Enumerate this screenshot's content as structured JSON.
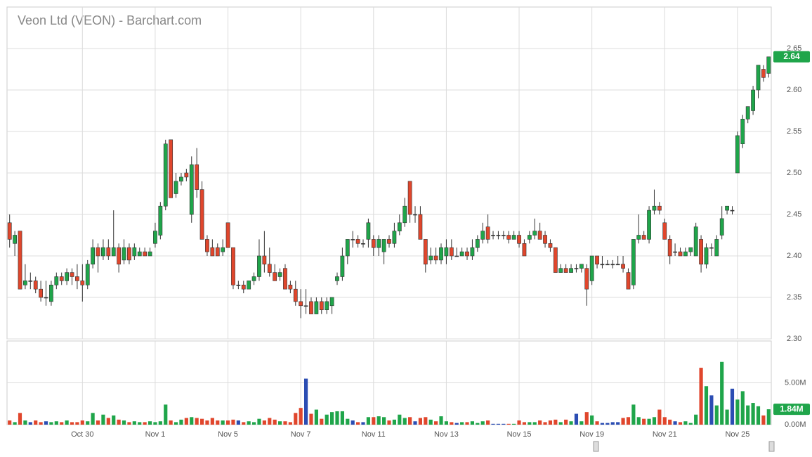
{
  "chart_data": {
    "type": "candlestick",
    "title": "Veon Ltd (VEON) - Barchart.com",
    "categories": [
      null,
      null,
      null,
      null,
      null,
      null,
      null,
      null,
      null,
      null,
      null,
      null,
      null,
      null,
      "Oct 30",
      null,
      null,
      null,
      null,
      null,
      null,
      null,
      null,
      null,
      null,
      null,
      null,
      null,
      "Nov 1",
      null,
      null,
      null,
      null,
      null,
      null,
      null,
      null,
      null,
      null,
      null,
      null,
      null,
      "Nov 5",
      null,
      null,
      null,
      null,
      null,
      null,
      null,
      null,
      null,
      null,
      null,
      null,
      null,
      "Nov 7",
      null,
      null,
      null,
      null,
      null,
      null,
      null,
      null,
      null,
      null,
      null,
      null,
      null,
      "Nov 11",
      null,
      null,
      null,
      null,
      null,
      null,
      null,
      null,
      null,
      null,
      null,
      null,
      null,
      "Nov 13",
      null,
      null,
      null,
      null,
      null,
      null,
      null,
      null,
      null,
      null,
      null,
      null,
      null,
      "Nov 15",
      null,
      null,
      null,
      null,
      null,
      null,
      null,
      null,
      null,
      null,
      null,
      null,
      null,
      "Nov 19",
      null,
      null,
      null,
      null,
      null,
      null,
      null,
      null,
      null,
      null,
      null,
      null,
      null,
      "Nov 21",
      null,
      null,
      null,
      null,
      null,
      null,
      null,
      null,
      null,
      null,
      null,
      null,
      null,
      "Nov 25",
      null,
      null,
      null,
      null,
      null,
      null
    ],
    "open": [
      2.44,
      2.415,
      2.43,
      2.365,
      2.37,
      2.37,
      2.36,
      2.35,
      2.345,
      2.365,
      2.375,
      2.37,
      2.38,
      2.375,
      2.37,
      2.365,
      2.39,
      2.41,
      2.4,
      2.41,
      2.4,
      2.41,
      2.395,
      2.41,
      2.4,
      2.4,
      2.405,
      2.4,
      2.415,
      2.425,
      2.46,
      2.54,
      2.475,
      2.49,
      2.5,
      2.45,
      2.51,
      2.48,
      2.42,
      2.41,
      2.41,
      2.405,
      2.44,
      2.41,
      2.365,
      2.365,
      2.36,
      2.37,
      2.375,
      2.4,
      2.39,
      2.38,
      2.375,
      2.385,
      2.365,
      2.36,
      2.345,
      2.34,
      2.345,
      2.33,
      2.345,
      2.335,
      2.34,
      2.37,
      2.375,
      2.4,
      2.42,
      2.42,
      2.415,
      2.42,
      2.42,
      2.41,
      2.405,
      2.42,
      2.415,
      2.43,
      2.44,
      2.49,
      2.45,
      2.45,
      2.42,
      2.395,
      2.4,
      2.395,
      2.4,
      2.41,
      2.4,
      2.4,
      2.405,
      2.4,
      2.41,
      2.42,
      2.435,
      2.425,
      2.425,
      2.425,
      2.425,
      2.42,
      2.425,
      2.415,
      2.42,
      2.425,
      2.43,
      2.425,
      2.415,
      2.41,
      2.38,
      2.385,
      2.38,
      2.385,
      2.385,
      2.385,
      2.37,
      2.4,
      2.39,
      2.39,
      2.39,
      2.39,
      2.39,
      2.38,
      2.365,
      2.42,
      2.425,
      2.42,
      2.455,
      2.46,
      2.44,
      2.42,
      2.405,
      2.405,
      2.4,
      2.405,
      2.4,
      2.42,
      2.39,
      2.41,
      2.4,
      2.425,
      2.455,
      2.455,
      2.5,
      2.535,
      2.565,
      2.575,
      2.6,
      2.625,
      2.62
    ],
    "high": [
      2.45,
      2.43,
      2.43,
      2.39,
      2.38,
      2.375,
      2.37,
      2.37,
      2.37,
      2.38,
      2.38,
      2.385,
      2.385,
      2.39,
      2.39,
      2.395,
      2.42,
      2.415,
      2.42,
      2.42,
      2.455,
      2.415,
      2.42,
      2.415,
      2.415,
      2.41,
      2.41,
      2.41,
      2.44,
      2.465,
      2.54,
      2.54,
      2.5,
      2.5,
      2.505,
      2.52,
      2.53,
      2.49,
      2.425,
      2.42,
      2.415,
      2.42,
      2.44,
      2.41,
      2.37,
      2.37,
      2.37,
      2.38,
      2.42,
      2.43,
      2.41,
      2.39,
      2.385,
      2.39,
      2.37,
      2.37,
      2.36,
      2.36,
      2.35,
      2.35,
      2.35,
      2.35,
      2.35,
      2.38,
      2.41,
      2.42,
      2.43,
      2.425,
      2.42,
      2.445,
      2.425,
      2.425,
      2.42,
      2.425,
      2.44,
      2.45,
      2.47,
      2.49,
      2.46,
      2.46,
      2.42,
      2.41,
      2.41,
      2.415,
      2.42,
      2.42,
      2.41,
      2.41,
      2.41,
      2.42,
      2.425,
      2.44,
      2.45,
      2.43,
      2.43,
      2.43,
      2.43,
      2.43,
      2.43,
      2.42,
      2.43,
      2.445,
      2.44,
      2.43,
      2.42,
      2.41,
      2.39,
      2.39,
      2.39,
      2.39,
      2.39,
      2.39,
      2.4,
      2.4,
      2.4,
      2.395,
      2.395,
      2.4,
      2.4,
      2.385,
      2.42,
      2.45,
      2.43,
      2.46,
      2.48,
      2.465,
      2.445,
      2.425,
      2.415,
      2.41,
      2.41,
      2.41,
      2.44,
      2.425,
      2.415,
      2.415,
      2.425,
      2.46,
      2.46,
      2.46,
      2.55,
      2.57,
      2.58,
      2.605,
      2.63,
      2.63,
      2.64
    ],
    "low": [
      2.41,
      2.4,
      2.36,
      2.36,
      2.36,
      2.355,
      2.345,
      2.34,
      2.34,
      2.36,
      2.365,
      2.365,
      2.365,
      2.36,
      2.345,
      2.36,
      2.385,
      2.38,
      2.395,
      2.395,
      2.4,
      2.38,
      2.39,
      2.39,
      2.395,
      2.4,
      2.4,
      2.4,
      2.41,
      2.42,
      2.455,
      2.47,
      2.47,
      2.485,
      2.49,
      2.44,
      2.47,
      2.42,
      2.4,
      2.4,
      2.4,
      2.4,
      2.41,
      2.36,
      2.36,
      2.355,
      2.36,
      2.365,
      2.37,
      2.38,
      2.375,
      2.37,
      2.37,
      2.36,
      2.355,
      2.34,
      2.325,
      2.33,
      2.33,
      2.33,
      2.33,
      2.33,
      2.33,
      2.365,
      2.37,
      2.39,
      2.41,
      2.41,
      2.41,
      2.41,
      2.4,
      2.4,
      2.39,
      2.41,
      2.41,
      2.425,
      2.435,
      2.44,
      2.44,
      2.42,
      2.38,
      2.39,
      2.39,
      2.39,
      2.39,
      2.395,
      2.4,
      2.4,
      2.395,
      2.395,
      2.405,
      2.415,
      2.415,
      2.42,
      2.42,
      2.42,
      2.415,
      2.42,
      2.41,
      2.4,
      2.415,
      2.42,
      2.42,
      2.41,
      2.405,
      2.38,
      2.38,
      2.38,
      2.38,
      2.38,
      2.38,
      2.34,
      2.365,
      2.385,
      2.385,
      2.39,
      2.385,
      2.39,
      2.38,
      2.36,
      2.36,
      2.415,
      2.42,
      2.415,
      2.45,
      2.45,
      2.42,
      2.39,
      2.4,
      2.4,
      2.4,
      2.4,
      2.4,
      2.38,
      2.385,
      2.4,
      2.4,
      2.42,
      2.45,
      2.45,
      2.5,
      2.53,
      2.56,
      2.57,
      2.59,
      2.61,
      2.615
    ],
    "close": [
      2.42,
      2.425,
      2.36,
      2.37,
      2.37,
      2.36,
      2.35,
      2.35,
      2.365,
      2.375,
      2.37,
      2.38,
      2.375,
      2.37,
      2.365,
      2.39,
      2.41,
      2.4,
      2.41,
      2.4,
      2.41,
      2.39,
      2.41,
      2.395,
      2.41,
      2.405,
      2.4,
      2.405,
      2.43,
      2.46,
      2.535,
      2.47,
      2.49,
      2.495,
      2.495,
      2.51,
      2.48,
      2.42,
      2.405,
      2.4,
      2.4,
      2.41,
      2.41,
      2.365,
      2.365,
      2.36,
      2.37,
      2.375,
      2.4,
      2.39,
      2.38,
      2.37,
      2.38,
      2.36,
      2.36,
      2.345,
      2.34,
      2.34,
      2.33,
      2.345,
      2.335,
      2.345,
      2.35,
      2.375,
      2.4,
      2.42,
      2.42,
      2.415,
      2.415,
      2.44,
      2.41,
      2.42,
      2.42,
      2.415,
      2.43,
      2.44,
      2.46,
      2.45,
      2.45,
      2.42,
      2.39,
      2.4,
      2.395,
      2.41,
      2.41,
      2.4,
      2.4,
      2.405,
      2.4,
      2.41,
      2.42,
      2.43,
      2.42,
      2.425,
      2.425,
      2.425,
      2.42,
      2.425,
      2.415,
      2.4,
      2.425,
      2.43,
      2.42,
      2.415,
      2.41,
      2.38,
      2.385,
      2.38,
      2.385,
      2.385,
      2.39,
      2.36,
      2.4,
      2.39,
      2.39,
      2.39,
      2.39,
      2.39,
      2.385,
      2.36,
      2.42,
      2.425,
      2.42,
      2.455,
      2.46,
      2.455,
      2.42,
      2.4,
      2.405,
      2.4,
      2.405,
      2.41,
      2.435,
      2.39,
      2.41,
      2.41,
      2.42,
      2.445,
      2.46,
      2.455,
      2.545,
      2.565,
      2.58,
      2.6,
      2.63,
      2.615,
      2.64
    ],
    "volume": [
      500000,
      300000,
      1400000,
      500000,
      300000,
      500000,
      300000,
      400000,
      300000,
      400000,
      300000,
      500000,
      300000,
      300000,
      500000,
      400000,
      1400000,
      500000,
      1200000,
      800000,
      1100000,
      600000,
      500000,
      300000,
      400000,
      300000,
      300000,
      400000,
      300000,
      400000,
      2400000,
      500000,
      300000,
      600000,
      800000,
      900000,
      800000,
      700000,
      500000,
      800000,
      500000,
      500000,
      500000,
      600000,
      500000,
      300000,
      400000,
      300000,
      700000,
      500000,
      800000,
      600000,
      400000,
      400000,
      300000,
      1400000,
      2000000,
      5500000,
      1300000,
      1800000,
      700000,
      1200000,
      1500000,
      1600000,
      1600000,
      700000,
      500000,
      300000,
      300000,
      900000,
      900000,
      1000000,
      900000,
      500000,
      600000,
      1200000,
      800000,
      900000,
      400000,
      800000,
      900000,
      600000,
      400000,
      1000000,
      400000,
      300000,
      200000,
      300000,
      300000,
      400000,
      200000,
      400000,
      500000,
      100000,
      100000,
      100000,
      100000,
      100000,
      500000,
      300000,
      300000,
      300000,
      500000,
      300000,
      500000,
      600000,
      300000,
      600000,
      400000,
      1300000,
      400000,
      1500000,
      1100000,
      400000,
      200000,
      200000,
      300000,
      300000,
      800000,
      900000,
      2400000,
      900000,
      700000,
      700000,
      900000,
      1800000,
      900000,
      600000,
      400000,
      300000,
      400000,
      200000,
      1200000,
      6800000,
      4600000,
      3500000,
      2300000,
      7500000,
      1800000,
      4300000,
      3000000,
      4000000,
      2300000,
      2600000,
      2200000,
      1100000,
      1840000
    ],
    "up_color": "#1fa54a",
    "down_color": "#e0462c",
    "flat_color": "#2b4db3",
    "ylim": [
      2.3,
      2.7
    ],
    "yticks": [
      {
        "value": 2.3,
        "label": "2.30"
      },
      2.35,
      {
        "value": 2.4,
        "label": "2.40"
      },
      2.45,
      {
        "value": 2.5,
        "label": "2.50"
      },
      2.55,
      {
        "value": 2.6,
        "label": "2.60"
      },
      2.65
    ],
    "volume_ylim": [
      0,
      10000000
    ],
    "volume_yticks": [
      {
        "value": 0,
        "label": "0.00M"
      },
      {
        "value": 5000000,
        "label": "5.00M"
      }
    ],
    "last_price": {
      "value": 2.64,
      "label": "2.64"
    },
    "last_volume": {
      "value": 1840000,
      "label": "1.84M"
    },
    "grid": true
  }
}
